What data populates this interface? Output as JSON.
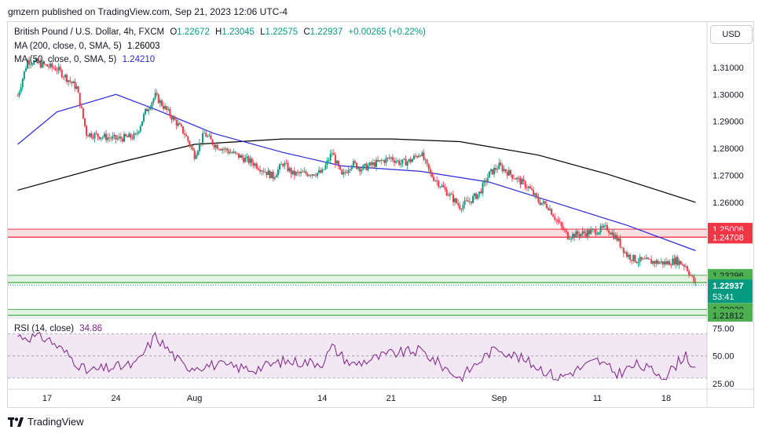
{
  "publisher_line": "gmzern published on TradingView.com, Sep 21, 2023 12:06 UTC-4",
  "footer_brand": "TradingView",
  "currency_button": "USD",
  "legend": {
    "symbol": "British Pound / U.S. Dollar, 4h, FXCM",
    "open_label": "O",
    "open": "1.22672",
    "high_label": "H",
    "high": "1.23045",
    "low_label": "L",
    "low": "1.22575",
    "close_label": "C",
    "close": "1.22937",
    "change": "+0.00265 (+0.22%)",
    "ma200_label": "MA (200, close, 0, SMA, 5)",
    "ma200_value": "1.26003",
    "ma50_label": "MA (50, close, 0, SMA, 5)",
    "ma50_value": "1.24210",
    "rsi_label": "RSI (14, close)",
    "rsi_value": "34.86"
  },
  "colors": {
    "up": "#089981",
    "down": "#f23645",
    "ma200": "#000000",
    "ma50": "#2929d6",
    "rsi": "#7e1f86",
    "resistance": "#f23645",
    "support": "#4caf50",
    "last_price": "#089981"
  },
  "chart_data": [
    {
      "type": "candlestick",
      "x_labels": [
        "17",
        "24",
        "Aug",
        "14",
        "21",
        "Sep",
        "11",
        "18"
      ],
      "y_ticks": [
        1.31,
        1.3,
        1.29,
        1.28,
        1.27,
        1.26
      ],
      "ylim": [
        1.2181,
        1.3158
      ],
      "close_path": [
        [
          "Jul 14",
          1.2995
        ],
        [
          "Jul 15",
          1.3125
        ],
        [
          "Jul 18",
          1.3095
        ],
        [
          "Jul 20",
          1.3025
        ],
        [
          "Jul 21",
          1.2855
        ],
        [
          "Jul 24",
          1.2835
        ],
        [
          "Jul 26",
          1.2845
        ],
        [
          "Jul 27",
          1.2935
        ],
        [
          "Jul 28",
          1.2995
        ],
        [
          "Jul 31",
          1.2855
        ],
        [
          "Aug 01",
          1.2775
        ],
        [
          "Aug 02",
          1.2855
        ],
        [
          "Aug 03",
          1.2815
        ],
        [
          "Aug 07",
          1.2745
        ],
        [
          "Aug 09",
          1.2695
        ],
        [
          "Aug 10",
          1.2745
        ],
        [
          "Aug 11",
          1.2705
        ],
        [
          "Aug 14",
          1.271
        ],
        [
          "Aug 15",
          1.2785
        ],
        [
          "Aug 16",
          1.2695
        ],
        [
          "Aug 17",
          1.2745
        ],
        [
          "Aug 18",
          1.2725
        ],
        [
          "Aug 21",
          1.2765
        ],
        [
          "Aug 22",
          1.2745
        ],
        [
          "Aug 23",
          1.2755
        ],
        [
          "Aug 24",
          1.2785
        ],
        [
          "Aug 25",
          1.2705
        ],
        [
          "Aug 28",
          1.2585
        ],
        [
          "Aug 29",
          1.2605
        ],
        [
          "Aug 30",
          1.2635
        ],
        [
          "Aug 31",
          1.2705
        ],
        [
          "Sep 01",
          1.2735
        ],
        [
          "Sep 04",
          1.2655
        ],
        [
          "Sep 05",
          1.2605
        ],
        [
          "Sep 06",
          1.2585
        ],
        [
          "Sep 07",
          1.2525
        ],
        [
          "Sep 08",
          1.2475
        ],
        [
          "Sep 11",
          1.2495
        ],
        [
          "Sep 12",
          1.2505
        ],
        [
          "Sep 13",
          1.2465
        ],
        [
          "Sep 14",
          1.2405
        ],
        [
          "Sep 15",
          1.2385
        ],
        [
          "Sep 18",
          1.2375
        ],
        [
          "Sep 19",
          1.2385
        ],
        [
          "Sep 20",
          1.2365
        ],
        [
          "Sep 21",
          1.2294
        ]
      ],
      "series": [
        {
          "name": "MA (200, close, 0, SMA, 5)",
          "values": [
            [
              "Jul 14",
              1.2645
            ],
            [
              "Jul 24",
              1.2745
            ],
            [
              "Aug 01",
              1.2815
            ],
            [
              "Aug 10",
              1.2835
            ],
            [
              "Aug 21",
              1.2835
            ],
            [
              "Aug 28",
              1.2825
            ],
            [
              "Sep 05",
              1.2775
            ],
            [
              "Sep 12",
              1.2705
            ],
            [
              "Sep 21",
              1.26
            ]
          ]
        },
        {
          "name": "MA (50, close, 0, SMA, 5)",
          "values": [
            [
              "Jul 14",
              1.2815
            ],
            [
              "Jul 18",
              1.2935
            ],
            [
              "Jul 24",
              1.3
            ],
            [
              "Jul 28",
              1.2945
            ],
            [
              "Aug 03",
              1.2855
            ],
            [
              "Aug 10",
              1.2785
            ],
            [
              "Aug 16",
              1.2735
            ],
            [
              "Aug 24",
              1.2715
            ],
            [
              "Aug 31",
              1.2675
            ],
            [
              "Sep 07",
              1.2595
            ],
            [
              "Sep 14",
              1.2515
            ],
            [
              "Sep 21",
              1.2421
            ]
          ]
        }
      ],
      "zones": [
        {
          "from": 1.24708,
          "to": 1.25006,
          "kind": "resistance",
          "labels": [
            "1.25006",
            "1.24708"
          ]
        },
        {
          "from": 1.23025,
          "to": 1.23296,
          "kind": "support",
          "labels": [
            "1.23296",
            "1.23025"
          ]
        },
        {
          "from": 1.21812,
          "to": 1.2203,
          "kind": "support",
          "labels": [
            "1.22030",
            "1.21812"
          ]
        }
      ],
      "last_price": {
        "value": 1.22937,
        "label": "1.22937",
        "countdown": "53:41"
      }
    },
    {
      "type": "line",
      "name": "RSI (14, close)",
      "y_ticks": [
        75.0,
        50.0,
        25.0
      ],
      "y_tick_labels": [
        "75.00",
        "50.00",
        "25.00"
      ],
      "ylim": [
        20,
        81
      ],
      "band": [
        30,
        70
      ],
      "values": [
        [
          "Jul 14",
          68
        ],
        [
          "Jul 17",
          66
        ],
        [
          "Jul 19",
          52
        ],
        [
          "Jul 21",
          36
        ],
        [
          "Jul 24",
          40
        ],
        [
          "Jul 26",
          42
        ],
        [
          "Jul 28",
          68
        ],
        [
          "Jul 31",
          40
        ],
        [
          "Aug 03",
          42
        ],
        [
          "Aug 07",
          38
        ],
        [
          "Aug 10",
          45
        ],
        [
          "Aug 14",
          44
        ],
        [
          "Aug 15",
          58
        ],
        [
          "Aug 17",
          42
        ],
        [
          "Aug 21",
          52
        ],
        [
          "Aug 24",
          55
        ],
        [
          "Aug 28",
          30
        ],
        [
          "Aug 31",
          53
        ],
        [
          "Sep 01",
          57
        ],
        [
          "Sep 05",
          40
        ],
        [
          "Sep 07",
          30
        ],
        [
          "Sep 11",
          46
        ],
        [
          "Sep 13",
          34
        ],
        [
          "Sep 15",
          42
        ],
        [
          "Sep 18",
          32
        ],
        [
          "Sep 20",
          52
        ],
        [
          "Sep 21",
          35
        ]
      ]
    }
  ]
}
